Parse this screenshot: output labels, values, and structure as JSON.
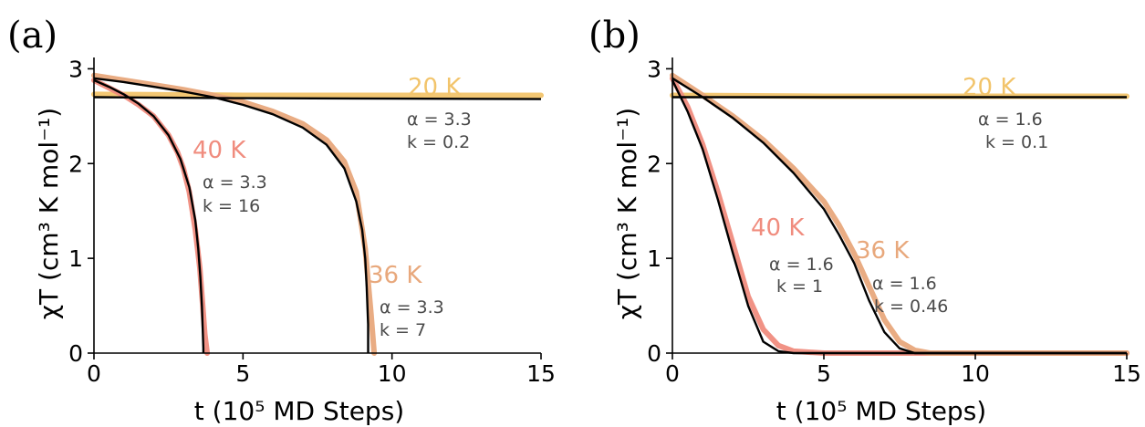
{
  "chart_data": [
    {
      "panel": "(a)",
      "type": "line",
      "xlabel": "t (10⁵ MD Steps)",
      "ylabel": "χT (cm³ K mol⁻¹)",
      "xlim": [
        0,
        15
      ],
      "ylim": [
        0,
        3.1
      ],
      "xticks": [
        0,
        5,
        10,
        15
      ],
      "yticks": [
        0,
        1,
        2,
        3
      ],
      "series": [
        {
          "name": "20 K",
          "color": "#f2c46b",
          "x": [
            0,
            5,
            10,
            15
          ],
          "y": [
            2.73,
            2.72,
            2.72,
            2.72
          ],
          "annotation": [
            "α = 3.3",
            "k = 0.2"
          ]
        },
        {
          "name": "40 K",
          "color": "#f08c7e",
          "x": [
            0,
            0.5,
            1,
            1.5,
            2,
            2.5,
            2.8,
            3.0,
            3.2,
            3.4,
            3.55,
            3.65,
            3.72,
            3.8
          ],
          "y": [
            2.88,
            2.8,
            2.72,
            2.62,
            2.5,
            2.3,
            2.12,
            1.95,
            1.7,
            1.3,
            0.9,
            0.5,
            0.2,
            0
          ],
          "annotation": [
            "α = 3.3",
            "k = 16"
          ]
        },
        {
          "name": "36 K",
          "color": "#e8a87c",
          "x": [
            0,
            1,
            2,
            3,
            4,
            5,
            6,
            7,
            7.8,
            8.4,
            8.8,
            9.1,
            9.3,
            9.4
          ],
          "y": [
            2.93,
            2.88,
            2.83,
            2.78,
            2.72,
            2.65,
            2.55,
            2.42,
            2.25,
            2.02,
            1.7,
            1.1,
            0.4,
            0
          ],
          "annotation": [
            "α = 3.3",
            "k = 7"
          ]
        }
      ],
      "fits": [
        {
          "x": [
            0,
            5,
            10,
            15
          ],
          "y": [
            2.7,
            2.69,
            2.685,
            2.68
          ]
        },
        {
          "x": [
            0,
            0.5,
            1,
            1.5,
            2,
            2.5,
            2.9,
            3.2,
            3.4,
            3.5,
            3.57,
            3.62,
            3.65,
            3.67,
            3.67
          ],
          "y": [
            2.88,
            2.81,
            2.73,
            2.63,
            2.5,
            2.3,
            2.05,
            1.75,
            1.4,
            1.1,
            0.8,
            0.5,
            0.25,
            0.05,
            0
          ]
        },
        {
          "x": [
            0,
            1,
            2,
            3,
            4,
            5,
            6,
            7,
            7.8,
            8.4,
            8.8,
            9.0,
            9.1,
            9.15,
            9.2,
            9.2
          ],
          "y": [
            2.9,
            2.86,
            2.81,
            2.76,
            2.7,
            2.62,
            2.52,
            2.38,
            2.2,
            1.95,
            1.6,
            1.3,
            1.0,
            0.7,
            0.3,
            0
          ]
        }
      ]
    },
    {
      "panel": "(b)",
      "type": "line",
      "xlabel": "t (10⁵ MD Steps)",
      "ylabel": "χT (cm³ K mol⁻¹)",
      "xlim": [
        0,
        15
      ],
      "ylim": [
        0,
        3.1
      ],
      "xticks": [
        0,
        5,
        10,
        15
      ],
      "yticks": [
        0,
        1,
        2,
        3
      ],
      "series": [
        {
          "name": "20 K",
          "color": "#f2c46b",
          "x": [
            0,
            5,
            10,
            15
          ],
          "y": [
            2.72,
            2.71,
            2.71,
            2.71
          ],
          "annotation": [
            "α = 1.6",
            "k = 0.1"
          ]
        },
        {
          "name": "40 K",
          "color": "#f08c7e",
          "x": [
            0,
            0.5,
            1,
            1.5,
            2,
            2.5,
            3,
            3.5,
            4,
            4.5,
            5,
            15
          ],
          "y": [
            2.9,
            2.6,
            2.2,
            1.7,
            1.15,
            0.6,
            0.25,
            0.08,
            0.02,
            0.01,
            0,
            0
          ],
          "annotation": [
            "α = 1.6",
            "k = 1"
          ]
        },
        {
          "name": "36 K",
          "color": "#e8a87c",
          "x": [
            0,
            1,
            2,
            3,
            4,
            5,
            5.5,
            6,
            6.5,
            7,
            7.5,
            8,
            8.5,
            15
          ],
          "y": [
            2.93,
            2.72,
            2.5,
            2.25,
            1.95,
            1.6,
            1.35,
            1.05,
            0.7,
            0.35,
            0.12,
            0.03,
            0,
            0
          ],
          "annotation": [
            "α = 1.6",
            "k = 0.46"
          ]
        }
      ],
      "fits": [
        {
          "x": [
            0,
            5,
            10,
            15
          ],
          "y": [
            2.7,
            2.7,
            2.7,
            2.7
          ]
        },
        {
          "x": [
            0,
            0.5,
            1,
            1.5,
            2,
            2.5,
            3,
            3.5,
            4,
            15
          ],
          "y": [
            2.88,
            2.55,
            2.15,
            1.62,
            1.05,
            0.5,
            0.12,
            0.02,
            0,
            0
          ]
        },
        {
          "x": [
            0,
            1,
            2,
            3,
            4,
            5,
            5.5,
            6,
            6.5,
            7,
            7.5,
            8,
            15
          ],
          "y": [
            2.9,
            2.7,
            2.48,
            2.22,
            1.9,
            1.52,
            1.25,
            0.95,
            0.55,
            0.22,
            0.05,
            0,
            0
          ]
        }
      ]
    }
  ]
}
